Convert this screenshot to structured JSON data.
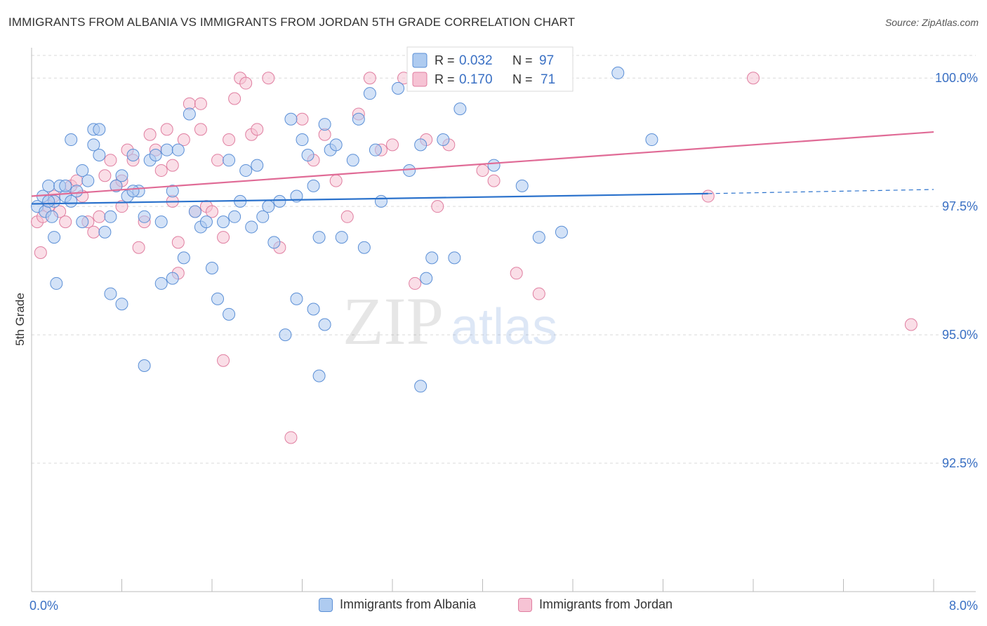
{
  "header": {
    "title": "IMMIGRANTS FROM ALBANIA VS IMMIGRANTS FROM JORDAN 5TH GRADE CORRELATION CHART",
    "source": "Source: ZipAtlas.com"
  },
  "watermark": {
    "zip": "ZIP",
    "atlas": "atlas"
  },
  "colors": {
    "albania": "#5b8fd6",
    "albania_fill": "#aecbf0",
    "albania_line": "#2b72cc",
    "jordan": "#e07ea0",
    "jordan_fill": "#f6c3d4",
    "jordan_line": "#e06b96",
    "value_text": "#3a70c4",
    "grid": "#d9d9d9"
  },
  "legend": {
    "rows": [
      {
        "r_label": "R =",
        "r_value": "0.032",
        "n_label": "N =",
        "n_value": "97"
      },
      {
        "r_label": "R =",
        "r_value": "0.170",
        "n_label": "N =",
        "n_value": "71"
      }
    ]
  },
  "bottom_legend": {
    "albania": "Immigrants from Albania",
    "jordan": "Immigrants from Jordan"
  },
  "chart_data": {
    "type": "scatter",
    "title": "IMMIGRANTS FROM ALBANIA VS IMMIGRANTS FROM JORDAN 5TH GRADE CORRELATION CHART",
    "xlabel": "",
    "ylabel": "5th Grade",
    "xlim": [
      0,
      8
    ],
    "ylim": [
      90.0,
      100.7
    ],
    "x_tick_labels": {
      "min": "0.0%",
      "max": "8.0%"
    },
    "y_ticks": [
      {
        "value": 100.0,
        "label": "100.0%"
      },
      {
        "value": 97.5,
        "label": "97.5%"
      },
      {
        "value": 95.0,
        "label": "95.0%"
      },
      {
        "value": 92.5,
        "label": "92.5%"
      }
    ],
    "series": [
      {
        "name": "Immigrants from Albania",
        "r": 0.032,
        "n": 97,
        "trend": {
          "x0": 0.0,
          "y0": 97.55,
          "x1": 6.0,
          "y1": 97.75,
          "dash_to_x": 8.0,
          "dash_to_y": 97.83
        },
        "points": [
          [
            0.05,
            97.5
          ],
          [
            0.1,
            97.7
          ],
          [
            0.15,
            97.9
          ],
          [
            0.2,
            97.6
          ],
          [
            0.12,
            97.4
          ],
          [
            0.25,
            97.9
          ],
          [
            0.3,
            97.7
          ],
          [
            0.18,
            97.3
          ],
          [
            0.2,
            96.9
          ],
          [
            0.22,
            96.0
          ],
          [
            0.35,
            97.6
          ],
          [
            0.4,
            97.8
          ],
          [
            0.45,
            97.2
          ],
          [
            0.5,
            98.0
          ],
          [
            0.45,
            98.2
          ],
          [
            0.6,
            98.5
          ],
          [
            0.55,
            98.7
          ],
          [
            0.65,
            97.0
          ],
          [
            0.7,
            97.3
          ],
          [
            0.75,
            97.9
          ],
          [
            0.8,
            98.1
          ],
          [
            0.85,
            97.7
          ],
          [
            0.9,
            98.5
          ],
          [
            0.95,
            97.8
          ],
          [
            1.0,
            97.3
          ],
          [
            1.05,
            98.4
          ],
          [
            1.1,
            98.5
          ],
          [
            1.15,
            97.2
          ],
          [
            1.2,
            98.6
          ],
          [
            1.25,
            97.8
          ],
          [
            1.3,
            98.6
          ],
          [
            1.35,
            96.5
          ],
          [
            1.4,
            99.3
          ],
          [
            1.45,
            97.4
          ],
          [
            1.5,
            97.1
          ],
          [
            1.55,
            97.2
          ],
          [
            1.6,
            96.3
          ],
          [
            1.65,
            95.7
          ],
          [
            1.7,
            97.2
          ],
          [
            1.75,
            98.4
          ],
          [
            1.8,
            97.3
          ],
          [
            1.85,
            97.6
          ],
          [
            1.9,
            98.2
          ],
          [
            1.95,
            97.1
          ],
          [
            2.0,
            98.3
          ],
          [
            2.05,
            97.3
          ],
          [
            2.1,
            97.5
          ],
          [
            2.15,
            96.8
          ],
          [
            2.2,
            97.6
          ],
          [
            2.25,
            95.0
          ],
          [
            2.3,
            99.2
          ],
          [
            2.35,
            97.7
          ],
          [
            2.4,
            98.8
          ],
          [
            2.45,
            98.5
          ],
          [
            2.5,
            97.9
          ],
          [
            2.55,
            96.9
          ],
          [
            2.6,
            99.1
          ],
          [
            2.65,
            98.6
          ],
          [
            2.7,
            98.7
          ],
          [
            2.75,
            96.9
          ],
          [
            2.85,
            98.4
          ],
          [
            2.9,
            99.2
          ],
          [
            2.95,
            96.7
          ],
          [
            3.0,
            99.7
          ],
          [
            3.05,
            98.6
          ],
          [
            3.1,
            97.6
          ],
          [
            3.25,
            99.8
          ],
          [
            3.35,
            98.2
          ],
          [
            3.45,
            98.7
          ],
          [
            3.5,
            96.1
          ],
          [
            3.55,
            96.5
          ],
          [
            3.65,
            98.8
          ],
          [
            3.75,
            96.5
          ],
          [
            3.8,
            99.4
          ],
          [
            4.1,
            98.3
          ],
          [
            4.35,
            97.9
          ],
          [
            4.5,
            96.9
          ],
          [
            5.5,
            98.8
          ],
          [
            5.2,
            100.1
          ],
          [
            4.7,
            97.0
          ],
          [
            1.0,
            94.4
          ],
          [
            1.75,
            95.4
          ],
          [
            2.6,
            95.2
          ],
          [
            2.5,
            95.5
          ],
          [
            2.35,
            95.7
          ],
          [
            2.55,
            94.2
          ],
          [
            3.45,
            94.0
          ],
          [
            1.25,
            96.1
          ],
          [
            1.15,
            96.0
          ],
          [
            0.8,
            95.6
          ],
          [
            0.7,
            95.8
          ],
          [
            0.9,
            97.8
          ],
          [
            0.55,
            99.0
          ],
          [
            0.6,
            99.0
          ],
          [
            0.35,
            98.8
          ],
          [
            0.3,
            97.9
          ],
          [
            0.15,
            97.6
          ]
        ]
      },
      {
        "name": "Immigrants from Jordan",
        "r": 0.17,
        "n": 71,
        "trend": {
          "x0": 0.0,
          "y0": 97.7,
          "x1": 8.0,
          "y1": 98.95
        },
        "points": [
          [
            0.05,
            97.2
          ],
          [
            0.08,
            96.6
          ],
          [
            0.1,
            97.3
          ],
          [
            0.15,
            97.5
          ],
          [
            0.2,
            97.7
          ],
          [
            0.25,
            97.4
          ],
          [
            0.3,
            97.2
          ],
          [
            0.35,
            97.9
          ],
          [
            0.4,
            98.0
          ],
          [
            0.45,
            97.7
          ],
          [
            0.5,
            97.2
          ],
          [
            0.55,
            97.0
          ],
          [
            0.6,
            97.3
          ],
          [
            0.65,
            98.1
          ],
          [
            0.7,
            98.4
          ],
          [
            0.75,
            97.9
          ],
          [
            0.8,
            98.0
          ],
          [
            0.85,
            98.6
          ],
          [
            0.9,
            98.4
          ],
          [
            0.95,
            96.7
          ],
          [
            1.0,
            97.2
          ],
          [
            1.05,
            98.9
          ],
          [
            1.1,
            98.6
          ],
          [
            1.15,
            98.2
          ],
          [
            1.2,
            99.0
          ],
          [
            1.25,
            98.3
          ],
          [
            1.3,
            96.2
          ],
          [
            1.35,
            98.8
          ],
          [
            1.4,
            99.5
          ],
          [
            1.45,
            97.4
          ],
          [
            1.5,
            99.0
          ],
          [
            1.55,
            97.5
          ],
          [
            1.6,
            97.4
          ],
          [
            1.65,
            98.4
          ],
          [
            1.7,
            96.9
          ],
          [
            1.75,
            98.8
          ],
          [
            1.8,
            99.6
          ],
          [
            1.85,
            100.0
          ],
          [
            1.9,
            99.9
          ],
          [
            1.95,
            98.9
          ],
          [
            2.0,
            99.0
          ],
          [
            2.1,
            100.0
          ],
          [
            2.2,
            96.7
          ],
          [
            2.3,
            93.0
          ],
          [
            2.4,
            99.2
          ],
          [
            2.5,
            98.4
          ],
          [
            2.6,
            98.9
          ],
          [
            2.7,
            98.0
          ],
          [
            2.8,
            97.3
          ],
          [
            2.9,
            99.3
          ],
          [
            3.0,
            100.0
          ],
          [
            3.1,
            98.6
          ],
          [
            3.2,
            98.7
          ],
          [
            3.3,
            100.0
          ],
          [
            3.4,
            96.0
          ],
          [
            3.5,
            98.8
          ],
          [
            3.6,
            97.5
          ],
          [
            3.7,
            98.7
          ],
          [
            3.8,
            100.0
          ],
          [
            4.0,
            98.2
          ],
          [
            4.1,
            98.0
          ],
          [
            4.3,
            96.2
          ],
          [
            4.5,
            95.8
          ],
          [
            0.8,
            97.5
          ],
          [
            1.25,
            97.6
          ],
          [
            1.3,
            96.8
          ],
          [
            1.5,
            99.5
          ],
          [
            1.7,
            94.5
          ],
          [
            6.0,
            97.7
          ],
          [
            6.4,
            100.0
          ],
          [
            7.8,
            95.2
          ]
        ]
      }
    ]
  }
}
